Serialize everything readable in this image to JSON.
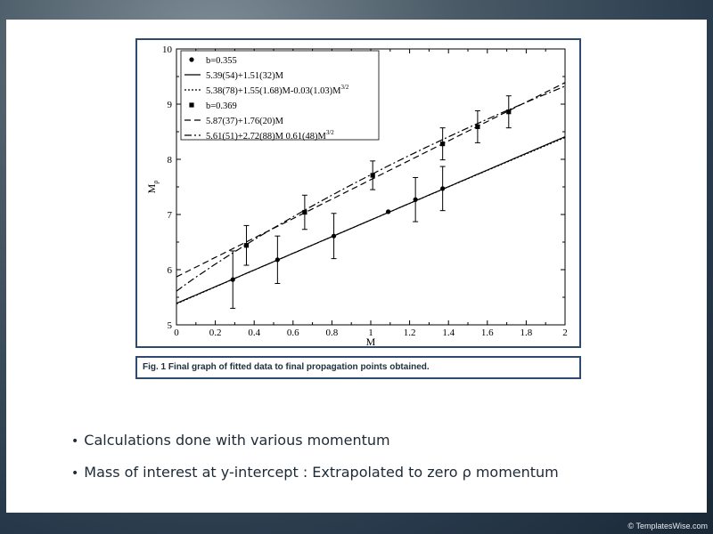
{
  "chart_data": {
    "type": "scatter",
    "xlabel": "M",
    "ylabel": "M_ρ",
    "xlim": [
      0,
      2
    ],
    "ylim": [
      5,
      10
    ],
    "xticks": [
      "0",
      "0.2",
      "0.4",
      "0.6",
      "0.8",
      "1",
      "1.2",
      "1.4",
      "1.6",
      "1.8",
      "2"
    ],
    "yticks": [
      "5",
      "6",
      "7",
      "8",
      "9",
      "10"
    ],
    "grid": false,
    "legend_position": "top-left",
    "series": [
      {
        "name": "b=0.355",
        "kind": "points",
        "marker": "circle",
        "x": [
          0.29,
          0.52,
          0.81,
          1.09,
          1.23,
          1.37
        ],
        "y": [
          5.82,
          6.18,
          6.61,
          7.05,
          7.27,
          7.47
        ],
        "yerr": [
          0.52,
          0.43,
          0.41,
          0.0,
          0.4,
          0.4
        ]
      },
      {
        "name": "5.39(54)+1.51(32)M",
        "kind": "line",
        "dash": "solid",
        "a": 5.39,
        "b": 1.51,
        "c": 0
      },
      {
        "name": "5.38(78)+1.55(1.68)M-0.03(1.03)M",
        "name_sup": "3/2",
        "kind": "line",
        "dash": "dotted",
        "a": 5.38,
        "b": 1.55,
        "c": -0.03
      },
      {
        "name": "b=0.369",
        "kind": "points",
        "marker": "square",
        "x": [
          0.36,
          0.66,
          1.01,
          1.37,
          1.55,
          1.71
        ],
        "y": [
          6.44,
          7.04,
          7.71,
          8.28,
          8.59,
          8.86
        ],
        "yerr": [
          0.36,
          0.31,
          0.26,
          0.29,
          0.29,
          0.29
        ]
      },
      {
        "name": "5.87(37)+1.76(20)M",
        "kind": "line",
        "dash": "dashed",
        "a": 5.87,
        "b": 1.76,
        "c": 0
      },
      {
        "name": "5.61(51)+2.72(88)M 0.61(48)M",
        "name_sup": "3/2",
        "kind": "line",
        "dash": "dashdot",
        "a": 5.61,
        "b": 2.72,
        "c": -0.61
      }
    ]
  },
  "caption": "Fig. 1  Final graph of fitted data to final propagation points obtained.",
  "bullets": [
    "Calculations done with various momentum",
    "Mass of interest at y-intercept : Extrapolated to zero ρ momentum"
  ],
  "watermark": "© TemplatesWise.com",
  "colors": {
    "frame": "#2e4a6e",
    "text": "#1e2a36"
  }
}
